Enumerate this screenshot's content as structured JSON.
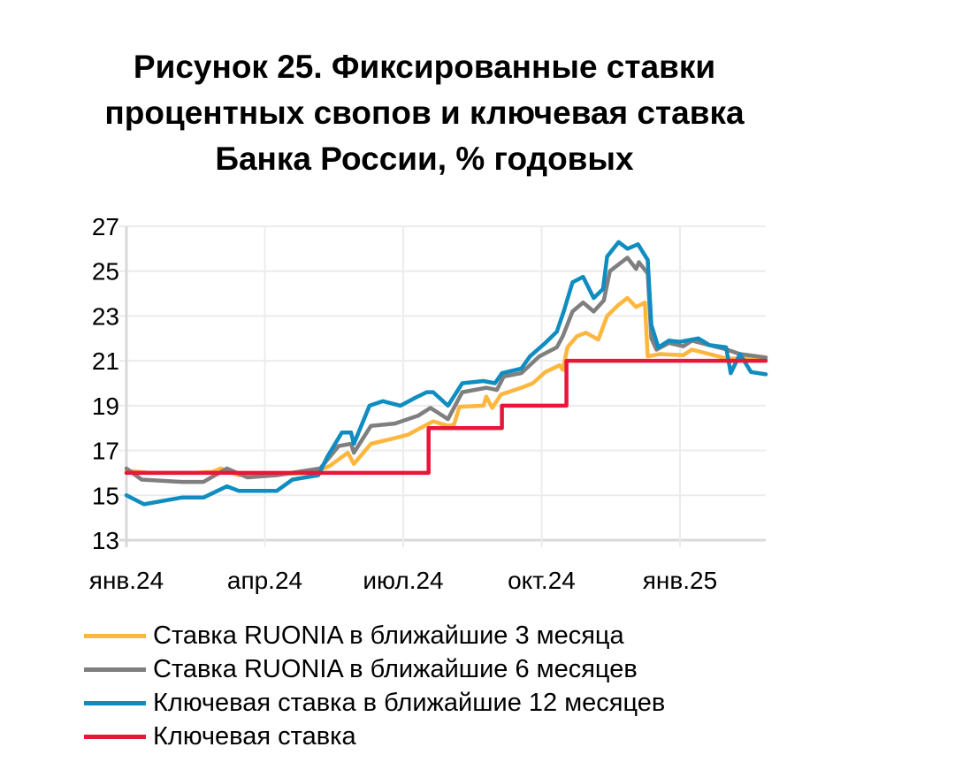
{
  "chart_data": {
    "type": "line",
    "title": [
      "Рисунок 25. Фиксированные ставки",
      "процентных свопов и ключевая ставка",
      "Банка России, % годовых"
    ],
    "xlabel": "",
    "ylabel": "",
    "x_unit": "months since Jan 2024",
    "xlim": [
      0,
      13.86
    ],
    "ylim": [
      13,
      27
    ],
    "yticks": [
      13,
      15,
      17,
      19,
      21,
      23,
      25,
      27
    ],
    "xticks": [
      {
        "value": 0,
        "label": "янв.24"
      },
      {
        "value": 3,
        "label": "апр.24"
      },
      {
        "value": 6,
        "label": "июл.24"
      },
      {
        "value": 9,
        "label": "окт.24"
      },
      {
        "value": 12,
        "label": "янв.25"
      }
    ],
    "grid": true,
    "legend_position": "bottom",
    "series": [
      {
        "name": "Ставка RUONIA в ближайшие 3 месяца",
        "color": "#FDB73E",
        "points": [
          [
            0,
            16.1
          ],
          [
            0.5,
            16.0
          ],
          [
            1.5,
            16.0
          ],
          [
            1.86,
            16.05
          ],
          [
            2.05,
            16.2
          ],
          [
            2.43,
            15.9
          ],
          [
            3.3,
            15.95
          ],
          [
            4.0,
            16.0
          ],
          [
            4.4,
            16.3
          ],
          [
            4.8,
            16.9
          ],
          [
            4.93,
            16.4
          ],
          [
            5.3,
            17.3
          ],
          [
            5.82,
            17.55
          ],
          [
            6.1,
            17.7
          ],
          [
            6.65,
            18.3
          ],
          [
            6.97,
            18.1
          ],
          [
            7.1,
            18.15
          ],
          [
            7.22,
            18.95
          ],
          [
            7.74,
            19.0
          ],
          [
            7.8,
            19.4
          ],
          [
            7.93,
            18.9
          ],
          [
            8.12,
            19.5
          ],
          [
            8.56,
            19.8
          ],
          [
            8.81,
            20.0
          ],
          [
            9.08,
            20.5
          ],
          [
            9.39,
            20.8
          ],
          [
            9.46,
            20.6
          ],
          [
            9.56,
            21.6
          ],
          [
            9.77,
            22.1
          ],
          [
            9.96,
            22.25
          ],
          [
            10.23,
            21.95
          ],
          [
            10.42,
            23.0
          ],
          [
            10.67,
            23.5
          ],
          [
            10.86,
            23.8
          ],
          [
            11.05,
            23.4
          ],
          [
            11.24,
            23.6
          ],
          [
            11.3,
            21.2
          ],
          [
            11.57,
            21.3
          ],
          [
            12.07,
            21.25
          ],
          [
            12.26,
            21.5
          ],
          [
            13.02,
            21.1
          ],
          [
            13.86,
            21.1
          ]
        ]
      },
      {
        "name": "Ставка RUONIA в ближайшие 6 месяцев",
        "color": "#7F7F7F",
        "points": [
          [
            0,
            16.2
          ],
          [
            0.33,
            15.7
          ],
          [
            1.2,
            15.6
          ],
          [
            1.67,
            15.6
          ],
          [
            2.18,
            16.2
          ],
          [
            2.62,
            15.8
          ],
          [
            3.26,
            15.9
          ],
          [
            4.2,
            16.2
          ],
          [
            4.6,
            17.2
          ],
          [
            4.87,
            17.3
          ],
          [
            4.93,
            16.9
          ],
          [
            5.3,
            18.1
          ],
          [
            5.82,
            18.2
          ],
          [
            6.32,
            18.55
          ],
          [
            6.59,
            18.9
          ],
          [
            6.97,
            18.4
          ],
          [
            7.28,
            19.6
          ],
          [
            7.8,
            19.8
          ],
          [
            8.03,
            19.7
          ],
          [
            8.18,
            20.3
          ],
          [
            8.56,
            20.45
          ],
          [
            8.95,
            21.2
          ],
          [
            9.33,
            21.6
          ],
          [
            9.46,
            22.1
          ],
          [
            9.67,
            23.2
          ],
          [
            9.9,
            23.6
          ],
          [
            10.13,
            23.2
          ],
          [
            10.35,
            23.7
          ],
          [
            10.48,
            25.0
          ],
          [
            10.86,
            25.6
          ],
          [
            11.05,
            25.1
          ],
          [
            11.11,
            25.4
          ],
          [
            11.3,
            24.9
          ],
          [
            11.38,
            22.0
          ],
          [
            11.49,
            21.5
          ],
          [
            11.76,
            21.8
          ],
          [
            12.07,
            21.65
          ],
          [
            12.26,
            21.9
          ],
          [
            12.64,
            21.7
          ],
          [
            13.02,
            21.5
          ],
          [
            13.3,
            21.3
          ],
          [
            13.86,
            21.15
          ]
        ]
      },
      {
        "name": "Ключевая ставка в ближайшие 12 месяцев",
        "color": "#0F8DC0",
        "points": [
          [
            0,
            15.0
          ],
          [
            0.38,
            14.6
          ],
          [
            1.2,
            14.9
          ],
          [
            1.67,
            14.9
          ],
          [
            2.18,
            15.4
          ],
          [
            2.43,
            15.2
          ],
          [
            3.26,
            15.2
          ],
          [
            3.6,
            15.7
          ],
          [
            4.16,
            15.9
          ],
          [
            4.35,
            16.7
          ],
          [
            4.67,
            17.8
          ],
          [
            4.87,
            17.8
          ],
          [
            4.93,
            17.3
          ],
          [
            5.27,
            19.0
          ],
          [
            5.56,
            19.2
          ],
          [
            5.94,
            19.0
          ],
          [
            6.26,
            19.35
          ],
          [
            6.51,
            19.6
          ],
          [
            6.65,
            19.6
          ],
          [
            6.97,
            19.0
          ],
          [
            7.28,
            20.0
          ],
          [
            7.74,
            20.1
          ],
          [
            7.99,
            20.0
          ],
          [
            8.14,
            20.45
          ],
          [
            8.56,
            20.65
          ],
          [
            8.75,
            21.2
          ],
          [
            9.08,
            21.8
          ],
          [
            9.33,
            22.3
          ],
          [
            9.48,
            23.2
          ],
          [
            9.67,
            24.5
          ],
          [
            9.9,
            24.75
          ],
          [
            10.13,
            23.8
          ],
          [
            10.33,
            24.2
          ],
          [
            10.42,
            25.65
          ],
          [
            10.67,
            26.3
          ],
          [
            10.86,
            26.0
          ],
          [
            11.09,
            26.2
          ],
          [
            11.3,
            25.5
          ],
          [
            11.38,
            22.6
          ],
          [
            11.53,
            21.6
          ],
          [
            11.76,
            21.9
          ],
          [
            12.0,
            21.85
          ],
          [
            12.4,
            22.0
          ],
          [
            12.64,
            21.7
          ],
          [
            13.0,
            21.6
          ],
          [
            13.1,
            20.45
          ],
          [
            13.3,
            21.3
          ],
          [
            13.54,
            20.5
          ],
          [
            13.86,
            20.4
          ]
        ]
      },
      {
        "name": "Ключевая ставка",
        "color": "#E8173A",
        "points": [
          [
            0,
            16
          ],
          [
            6.55,
            16
          ],
          [
            6.55,
            18
          ],
          [
            8.14,
            18
          ],
          [
            8.14,
            19
          ],
          [
            9.54,
            19
          ],
          [
            9.54,
            21
          ],
          [
            13.86,
            21
          ]
        ]
      }
    ]
  }
}
